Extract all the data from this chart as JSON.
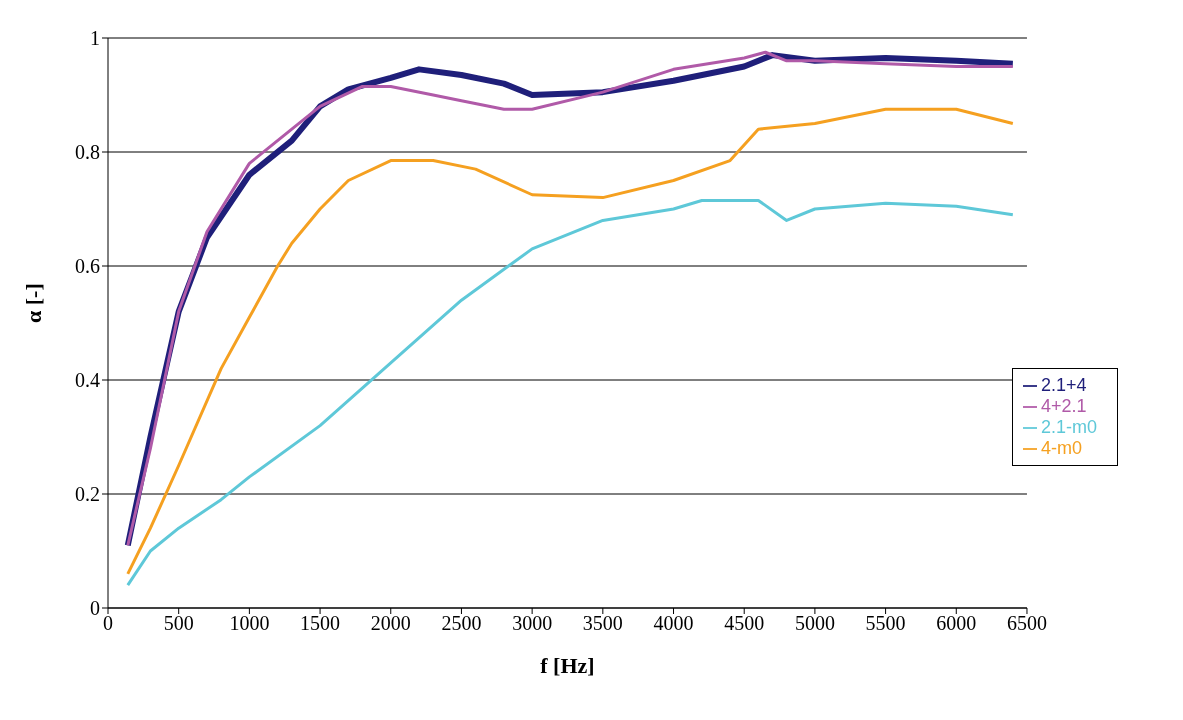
{
  "chart_data": {
    "type": "line",
    "xlabel": "f [Hz]",
    "ylabel": "α [-]",
    "xlim": [
      0,
      6500
    ],
    "xticks": [
      0,
      500,
      1000,
      1500,
      2000,
      2500,
      3000,
      3500,
      4000,
      4500,
      5000,
      5500,
      6000,
      6500
    ],
    "ylim": [
      0,
      1
    ],
    "yticks": [
      0,
      0.2,
      0.4,
      0.6,
      0.8,
      1
    ],
    "grid": "y",
    "legend": "right",
    "marker": "none",
    "line_style": "solid",
    "series": [
      {
        "name": "2.1+4",
        "color": "#1f1f7a",
        "x": [
          140,
          300,
          500,
          700,
          1000,
          1300,
          1500,
          1700,
          2000,
          2200,
          2500,
          2800,
          3000,
          3500,
          4000,
          4500,
          4700,
          5000,
          5500,
          6000,
          6400
        ],
        "values": [
          0.11,
          0.3,
          0.52,
          0.65,
          0.76,
          0.82,
          0.88,
          0.91,
          0.93,
          0.945,
          0.935,
          0.92,
          0.9,
          0.905,
          0.925,
          0.95,
          0.97,
          0.96,
          0.965,
          0.96,
          0.955
        ]
      },
      {
        "name": "4+2.1",
        "color": "#b05aa8",
        "x": [
          140,
          300,
          400,
          500,
          700,
          1000,
          1300,
          1500,
          1800,
          2000,
          2300,
          2500,
          2800,
          3000,
          3500,
          4000,
          4500,
          4650,
          4800,
          5000,
          5500,
          6000,
          6400
        ],
        "values": [
          0.11,
          0.28,
          0.4,
          0.52,
          0.66,
          0.78,
          0.84,
          0.88,
          0.915,
          0.915,
          0.9,
          0.89,
          0.875,
          0.875,
          0.905,
          0.945,
          0.965,
          0.975,
          0.96,
          0.96,
          0.955,
          0.95,
          0.95
        ]
      },
      {
        "name": "2.1-m0",
        "color": "#5ec8d8",
        "x": [
          140,
          300,
          500,
          800,
          1000,
          1500,
          2000,
          2500,
          3000,
          3500,
          4000,
          4200,
          4600,
          4800,
          5000,
          5500,
          6000,
          6400
        ],
        "values": [
          0.04,
          0.1,
          0.14,
          0.19,
          0.23,
          0.32,
          0.43,
          0.54,
          0.63,
          0.68,
          0.7,
          0.715,
          0.715,
          0.68,
          0.7,
          0.71,
          0.705,
          0.69
        ]
      },
      {
        "name": "4-m0",
        "color": "#f5a020",
        "x": [
          140,
          300,
          500,
          800,
          1000,
          1200,
          1300,
          1500,
          1700,
          2000,
          2300,
          2600,
          3000,
          3500,
          4000,
          4400,
          4600,
          5000,
          5500,
          6000,
          6400
        ],
        "values": [
          0.06,
          0.14,
          0.25,
          0.42,
          0.51,
          0.6,
          0.64,
          0.7,
          0.75,
          0.785,
          0.785,
          0.77,
          0.725,
          0.72,
          0.75,
          0.785,
          0.84,
          0.85,
          0.875,
          0.875,
          0.85
        ]
      }
    ]
  }
}
